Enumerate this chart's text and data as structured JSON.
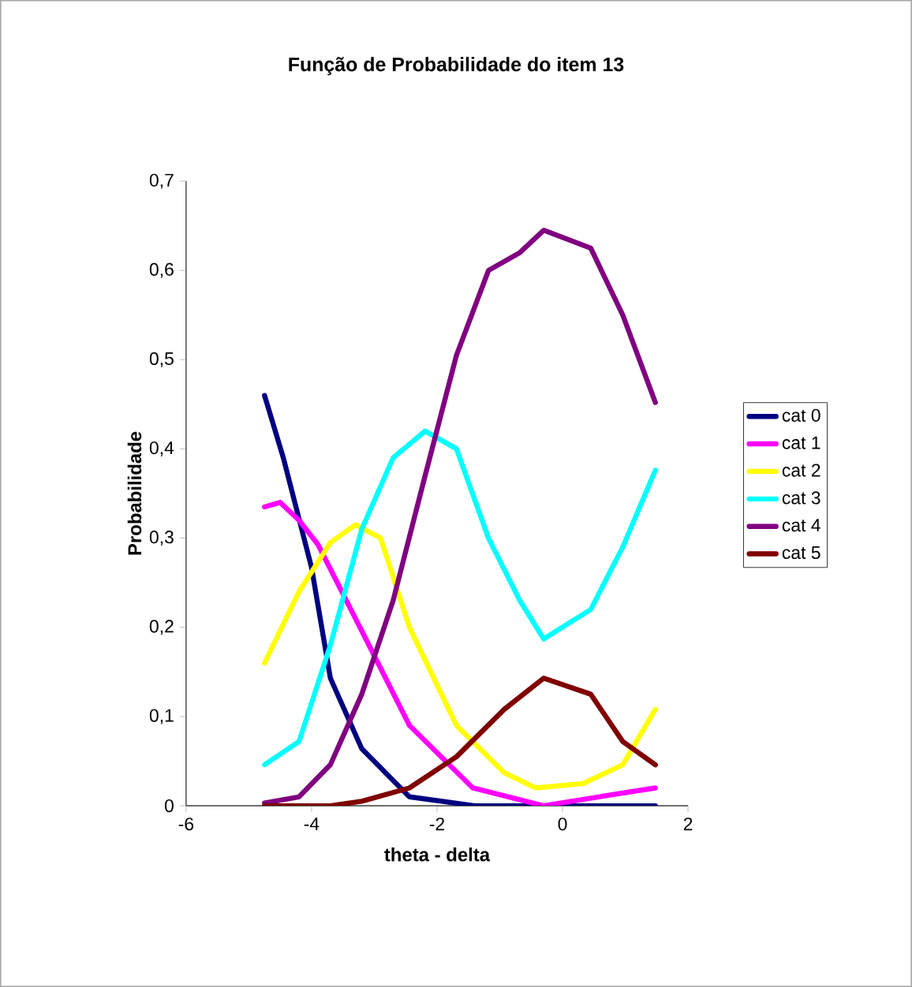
{
  "chart_data": {
    "type": "line",
    "title": "Função de Probabilidade do item 13",
    "xlabel": "theta - delta",
    "ylabel": "Probabilidade",
    "xlim": [
      -6,
      2
    ],
    "xticks": [
      -6,
      -4,
      -2,
      0,
      2
    ],
    "ylim": [
      0,
      0.7
    ],
    "yticks": [
      0,
      {
        "value": 0.1,
        "label": "0,1"
      },
      {
        "value": 0.2,
        "label": "0,2"
      },
      {
        "value": 0.3,
        "label": "0,3"
      },
      {
        "value": 0.4,
        "label": "0,4"
      },
      {
        "value": 0.5,
        "label": "0,5"
      },
      {
        "value": 0.6,
        "label": "0,6"
      },
      {
        "value": 0.7,
        "label": "0,7"
      }
    ],
    "legend": "right",
    "grid": false,
    "marker": "none",
    "line_style": "solid",
    "series": [
      {
        "name": "cat 0",
        "color": "#000080",
        "x": [
          -4.75,
          -4.45,
          -4.0,
          -3.7,
          -3.2,
          -2.44,
          -1.4,
          -0.5,
          0.5,
          1.48
        ],
        "values": [
          0.46,
          0.39,
          0.267,
          0.143,
          0.064,
          0.01,
          0.0,
          0.0,
          0.0,
          0.0
        ]
      },
      {
        "name": "cat 1",
        "color": "#ff00ff",
        "x": [
          -4.75,
          -4.5,
          -4.2,
          -3.9,
          -3.2,
          -2.44,
          -1.43,
          -0.3,
          0.58,
          1.48
        ],
        "values": [
          0.335,
          0.34,
          0.32,
          0.293,
          0.196,
          0.09,
          0.02,
          0.0,
          0.01,
          0.02
        ]
      },
      {
        "name": "cat 2",
        "color": "#ffff00",
        "x": [
          -4.75,
          -4.2,
          -3.7,
          -3.3,
          -2.9,
          -2.44,
          -1.69,
          -0.93,
          -0.43,
          0.33,
          0.96,
          1.48
        ],
        "values": [
          0.16,
          0.24,
          0.295,
          0.315,
          0.3,
          0.2,
          0.09,
          0.037,
          0.02,
          0.025,
          0.046,
          0.108
        ]
      },
      {
        "name": "cat 3",
        "color": "#00ffff",
        "x": [
          -4.75,
          -4.2,
          -3.7,
          -3.2,
          -2.7,
          -2.19,
          -1.69,
          -1.18,
          -0.68,
          -0.3,
          0.45,
          0.96,
          1.48
        ],
        "values": [
          0.046,
          0.072,
          0.18,
          0.31,
          0.39,
          0.42,
          0.4,
          0.3,
          0.23,
          0.187,
          0.22,
          0.29,
          0.376
        ]
      },
      {
        "name": "cat 4",
        "color": "#800080",
        "x": [
          -4.75,
          -4.2,
          -3.7,
          -3.2,
          -2.7,
          -2.19,
          -1.69,
          -1.18,
          -0.68,
          -0.3,
          0.45,
          0.96,
          1.48
        ],
        "values": [
          0.003,
          0.01,
          0.046,
          0.125,
          0.23,
          0.37,
          0.505,
          0.6,
          0.62,
          0.645,
          0.625,
          0.55,
          0.452
        ]
      },
      {
        "name": "cat 5",
        "color": "#800000",
        "x": [
          -4.75,
          -3.7,
          -3.2,
          -2.44,
          -1.69,
          -0.93,
          -0.3,
          0.45,
          0.96,
          1.48
        ],
        "values": [
          0.0,
          0.0,
          0.005,
          0.02,
          0.055,
          0.108,
          0.143,
          0.125,
          0.072,
          0.046
        ]
      }
    ]
  }
}
